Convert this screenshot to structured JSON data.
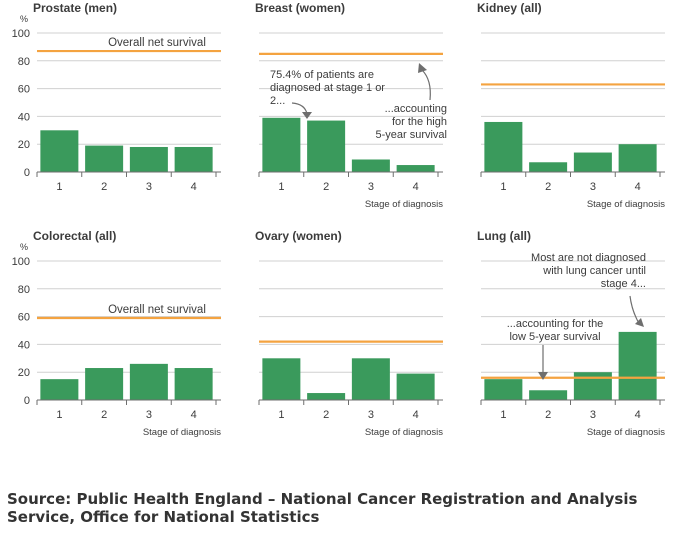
{
  "colors": {
    "bar": "#3a9a5c",
    "survival_line": "#f4a340",
    "grid": "#d0d0d0",
    "axis": "#6e6e6e",
    "text": "#3c3c3c",
    "arrow": "#6e6e6e"
  },
  "y_unit": "%",
  "xlabel": "Stage of diagnosis",
  "source": "Source: Public Health England – National Cancer Registration and Analysis Service, Office for National Statistics",
  "chart_data": [
    {
      "type": "bar",
      "title": "Prostate (men)",
      "categories": [
        "1",
        "2",
        "3",
        "4"
      ],
      "values": [
        30,
        19,
        18,
        18
      ],
      "survival": 87,
      "ylim": [
        0,
        100
      ],
      "yticks": [
        0,
        20,
        40,
        60,
        80,
        100
      ],
      "ylabel": "%",
      "show_yaxis": true,
      "xlabel": "",
      "annotations": [
        {
          "text": "Overall net survival",
          "kind": "line-label"
        }
      ]
    },
    {
      "type": "bar",
      "title": "Breast (women)",
      "categories": [
        "1",
        "2",
        "3",
        "4"
      ],
      "values": [
        39,
        37,
        9,
        5
      ],
      "survival": 85,
      "ylim": [
        0,
        100
      ],
      "yticks": [
        0,
        20,
        40,
        60,
        80,
        100
      ],
      "ylabel": "",
      "show_yaxis": false,
      "xlabel": "Stage of diagnosis",
      "annotations": [
        {
          "text": "75.4% of patients are diagnosed at stage 1 or 2...",
          "kind": "note"
        },
        {
          "text": "...accounting for the high 5-year survival",
          "kind": "note"
        }
      ]
    },
    {
      "type": "bar",
      "title": "Kidney (all)",
      "categories": [
        "1",
        "2",
        "3",
        "4"
      ],
      "values": [
        36,
        7,
        14,
        20
      ],
      "survival": 63,
      "ylim": [
        0,
        100
      ],
      "yticks": [
        0,
        20,
        40,
        60,
        80,
        100
      ],
      "ylabel": "",
      "show_yaxis": false,
      "xlabel": "Stage of diagnosis",
      "annotations": []
    },
    {
      "type": "bar",
      "title": "Colorectal (all)",
      "categories": [
        "1",
        "2",
        "3",
        "4"
      ],
      "values": [
        15,
        23,
        26,
        23
      ],
      "survival": 59,
      "ylim": [
        0,
        100
      ],
      "yticks": [
        0,
        20,
        40,
        60,
        80,
        100
      ],
      "ylabel": "%",
      "show_yaxis": true,
      "xlabel": "Stage of diagnosis",
      "annotations": [
        {
          "text": "Overall net survival",
          "kind": "line-label"
        }
      ]
    },
    {
      "type": "bar",
      "title": "Ovary (women)",
      "categories": [
        "1",
        "2",
        "3",
        "4"
      ],
      "values": [
        30,
        5,
        30,
        19
      ],
      "survival": 42,
      "ylim": [
        0,
        100
      ],
      "yticks": [
        0,
        20,
        40,
        60,
        80,
        100
      ],
      "ylabel": "",
      "show_yaxis": false,
      "xlabel": "Stage of diagnosis",
      "annotations": []
    },
    {
      "type": "bar",
      "title": "Lung (all)",
      "categories": [
        "1",
        "2",
        "3",
        "4"
      ],
      "values": [
        15,
        7,
        20,
        49
      ],
      "survival": 16,
      "ylim": [
        0,
        100
      ],
      "yticks": [
        0,
        20,
        40,
        60,
        80,
        100
      ],
      "ylabel": "",
      "show_yaxis": false,
      "xlabel": "Stage of diagnosis",
      "annotations": [
        {
          "text": "Most are not diagnosed with lung cancer until stage 4...",
          "kind": "note"
        },
        {
          "text": "...accounting for the low 5-year survival",
          "kind": "note"
        }
      ]
    }
  ]
}
